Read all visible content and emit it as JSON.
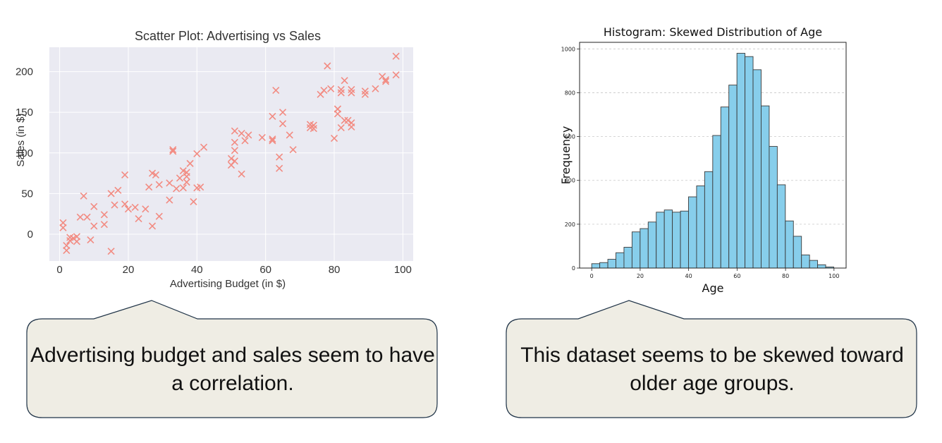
{
  "chart_data": [
    {
      "type": "scatter",
      "title": "Scatter Plot: Advertising vs Sales",
      "xlabel": "Advertising Budget (in $)",
      "ylabel": "Sales (in $)",
      "xlim": [
        -3,
        103
      ],
      "ylim": [
        -33,
        230
      ],
      "xticks": [
        0,
        20,
        40,
        60,
        80,
        100
      ],
      "yticks": [
        0,
        50,
        100,
        150,
        200
      ],
      "grid": true,
      "marker": "x",
      "color": "#f28b82",
      "background": "#eaeaf2",
      "points": [
        [
          1,
          14
        ],
        [
          1,
          8
        ],
        [
          2,
          -20
        ],
        [
          2,
          -14
        ],
        [
          3,
          -8
        ],
        [
          3,
          -4
        ],
        [
          4,
          -5
        ],
        [
          5,
          -3
        ],
        [
          5,
          -9
        ],
        [
          6,
          21
        ],
        [
          7,
          47
        ],
        [
          8,
          21
        ],
        [
          9,
          -7
        ],
        [
          10,
          10
        ],
        [
          10,
          34
        ],
        [
          13,
          12
        ],
        [
          13,
          24
        ],
        [
          15,
          50
        ],
        [
          15,
          -21
        ],
        [
          16,
          36
        ],
        [
          17,
          54
        ],
        [
          19,
          37
        ],
        [
          19,
          73
        ],
        [
          20,
          31
        ],
        [
          22,
          33
        ],
        [
          23,
          19
        ],
        [
          25,
          31
        ],
        [
          26,
          58
        ],
        [
          27,
          75
        ],
        [
          27,
          10
        ],
        [
          28,
          73
        ],
        [
          29,
          22
        ],
        [
          29,
          61
        ],
        [
          32,
          63
        ],
        [
          32,
          42
        ],
        [
          33,
          104
        ],
        [
          33,
          102
        ],
        [
          34,
          56
        ],
        [
          35,
          69
        ],
        [
          36,
          57
        ],
        [
          36,
          78
        ],
        [
          37,
          64
        ],
        [
          37,
          76
        ],
        [
          37,
          71
        ],
        [
          38,
          87
        ],
        [
          39,
          40
        ],
        [
          40,
          99
        ],
        [
          40,
          57
        ],
        [
          41,
          58
        ],
        [
          42,
          107
        ],
        [
          50,
          93
        ],
        [
          50,
          85
        ],
        [
          51,
          113
        ],
        [
          51,
          103
        ],
        [
          51,
          90
        ],
        [
          51,
          127
        ],
        [
          53,
          124
        ],
        [
          53,
          74
        ],
        [
          54,
          115
        ],
        [
          55,
          122
        ],
        [
          59,
          119
        ],
        [
          62,
          145
        ],
        [
          62,
          115
        ],
        [
          62,
          117
        ],
        [
          63,
          177
        ],
        [
          64,
          95
        ],
        [
          64,
          81
        ],
        [
          65,
          136
        ],
        [
          65,
          150
        ],
        [
          67,
          122
        ],
        [
          68,
          104
        ],
        [
          73,
          135
        ],
        [
          73,
          131
        ],
        [
          74,
          134
        ],
        [
          74,
          130
        ],
        [
          76,
          172
        ],
        [
          77,
          177
        ],
        [
          78,
          207
        ],
        [
          79,
          179
        ],
        [
          80,
          118
        ],
        [
          81,
          154
        ],
        [
          81,
          154
        ],
        [
          81,
          148
        ],
        [
          82,
          178
        ],
        [
          82,
          174
        ],
        [
          82,
          131
        ],
        [
          83,
          189
        ],
        [
          83,
          140
        ],
        [
          84,
          140
        ],
        [
          85,
          174
        ],
        [
          85,
          132
        ],
        [
          85,
          137
        ],
        [
          85,
          178
        ],
        [
          89,
          172
        ],
        [
          89,
          176
        ],
        [
          92,
          179
        ],
        [
          94,
          194
        ],
        [
          95,
          190
        ],
        [
          95,
          188
        ],
        [
          98,
          219
        ],
        [
          98,
          196
        ]
      ]
    },
    {
      "type": "bar",
      "subtype": "histogram",
      "title": "Histogram: Skewed Distribution of Age",
      "xlabel": "Age",
      "ylabel": "Frequency",
      "xlim": [
        -5,
        105
      ],
      "ylim": [
        0,
        1030
      ],
      "xticks": [
        0,
        20,
        40,
        60,
        80,
        100
      ],
      "yticks": [
        0,
        200,
        400,
        600,
        800,
        1000
      ],
      "grid": "y",
      "bar_color": "#87ceeb",
      "edge_color": "#3a3a3a",
      "bin_start": 0,
      "bin_width": 3.33,
      "values": [
        20,
        25,
        40,
        70,
        95,
        165,
        180,
        210,
        255,
        265,
        255,
        260,
        325,
        375,
        440,
        605,
        735,
        835,
        980,
        965,
        905,
        740,
        555,
        380,
        215,
        145,
        60,
        35,
        15,
        5
      ]
    }
  ],
  "callouts": {
    "left": "Advertising budget and sales seem to have a correlation.",
    "right": "This dataset seems to be skewed toward older age groups."
  },
  "colors": {
    "callout_fill": "#efede4",
    "callout_stroke": "#1f3347"
  }
}
